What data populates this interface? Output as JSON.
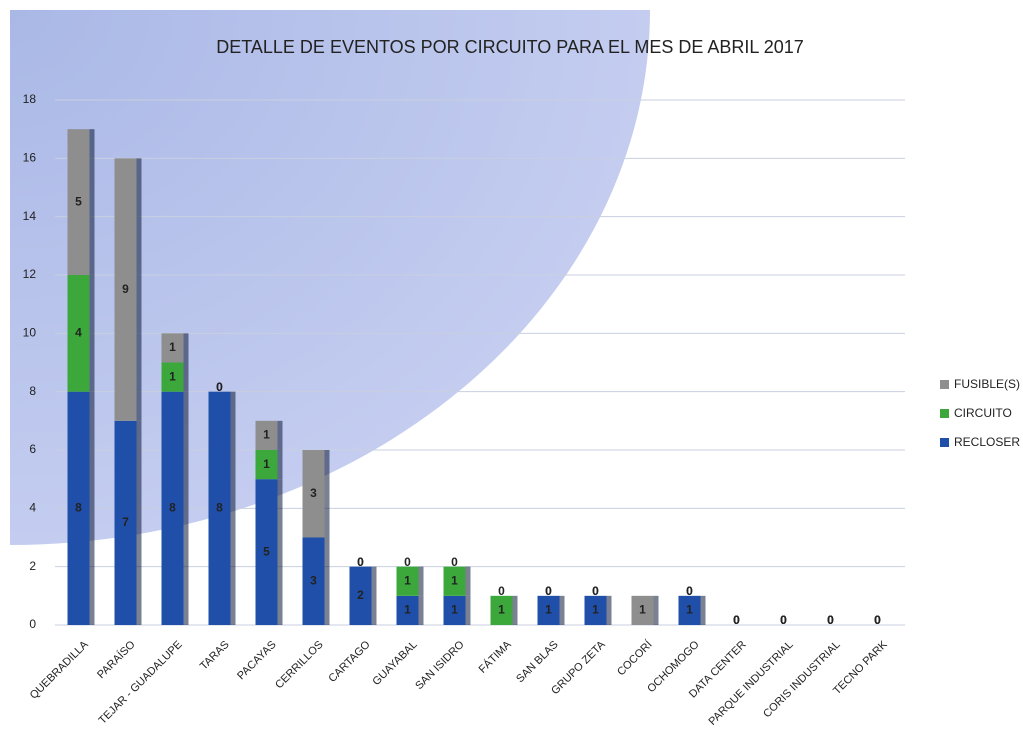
{
  "chart_data": {
    "type": "bar",
    "stacked": true,
    "title": "DETALLE DE EVENTOS POR CIRCUITO PARA EL MES DE ABRIL 2017",
    "categories": [
      "QUEBRADILLA",
      "PARAÍSO",
      "TEJAR - GUADALUPE",
      "TARAS",
      "PACAYAS",
      "CERRILLOS",
      "CARTAGO",
      "GUAYABAL",
      "SAN ISIDRO",
      "FÁTIMA",
      "SAN BLAS",
      "GRUPO ZETA",
      "COCORÍ",
      "OCHOMOGO",
      "DATA CENTER",
      "PARQUE INDUSTRIAL",
      "CORIS INDUSTRIAL",
      "TECNO PARK"
    ],
    "series": [
      {
        "name": "RECLOSER",
        "color": "#1f4fa8",
        "values": [
          8,
          7,
          8,
          8,
          5,
          3,
          2,
          1,
          1,
          0,
          1,
          1,
          0,
          1,
          0,
          0,
          0,
          0
        ]
      },
      {
        "name": "CIRCUITO",
        "color": "#3ca83c",
        "values": [
          4,
          0,
          1,
          0,
          1,
          0,
          0,
          1,
          1,
          1,
          0,
          0,
          0,
          0,
          0,
          0,
          0,
          0
        ]
      },
      {
        "name": "FUSIBLE(S)",
        "color": "#8e8e8e",
        "values": [
          5,
          9,
          1,
          0,
          1,
          3,
          0,
          0,
          0,
          0,
          0,
          0,
          1,
          0,
          0,
          0,
          0,
          0
        ]
      }
    ],
    "ylim": [
      0,
      18
    ],
    "yticks": [
      0,
      2,
      4,
      6,
      8,
      10,
      12,
      14,
      16,
      18
    ],
    "grid": true,
    "legend": "right"
  }
}
